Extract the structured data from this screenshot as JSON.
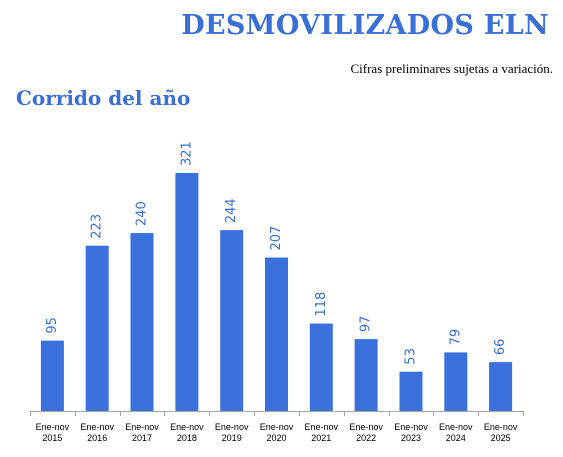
{
  "header": {
    "title": "DESMOVILIZADOS ELN",
    "note": "Cifras preliminares sujetas a variación.",
    "section": "Corrido del año"
  },
  "colors": {
    "bar": "#3a71dc",
    "label": "#3a6fd6",
    "axis": "#a6a6a6"
  },
  "chart_data": {
    "type": "bar",
    "title": "",
    "xlabel": "",
    "ylabel": "",
    "categories": [
      [
        "Ene-nov",
        "2015"
      ],
      [
        "Ene-nov",
        "2016"
      ],
      [
        "Ene-nov",
        "2017"
      ],
      [
        "Ene-nov",
        "2018"
      ],
      [
        "Ene-nov",
        "2019"
      ],
      [
        "Ene-nov",
        "2020"
      ],
      [
        "Ene-nov",
        "2021"
      ],
      [
        "Ene-nov",
        "2022"
      ],
      [
        "Ene-nov",
        "2023"
      ],
      [
        "Ene-nov",
        "2024"
      ],
      [
        "Ene-nov",
        "2025"
      ]
    ],
    "values": [
      95,
      223,
      240,
      321,
      244,
      207,
      118,
      97,
      53,
      79,
      66
    ],
    "ylim": [
      0,
      321
    ],
    "grid": false,
    "data_labels": true
  }
}
